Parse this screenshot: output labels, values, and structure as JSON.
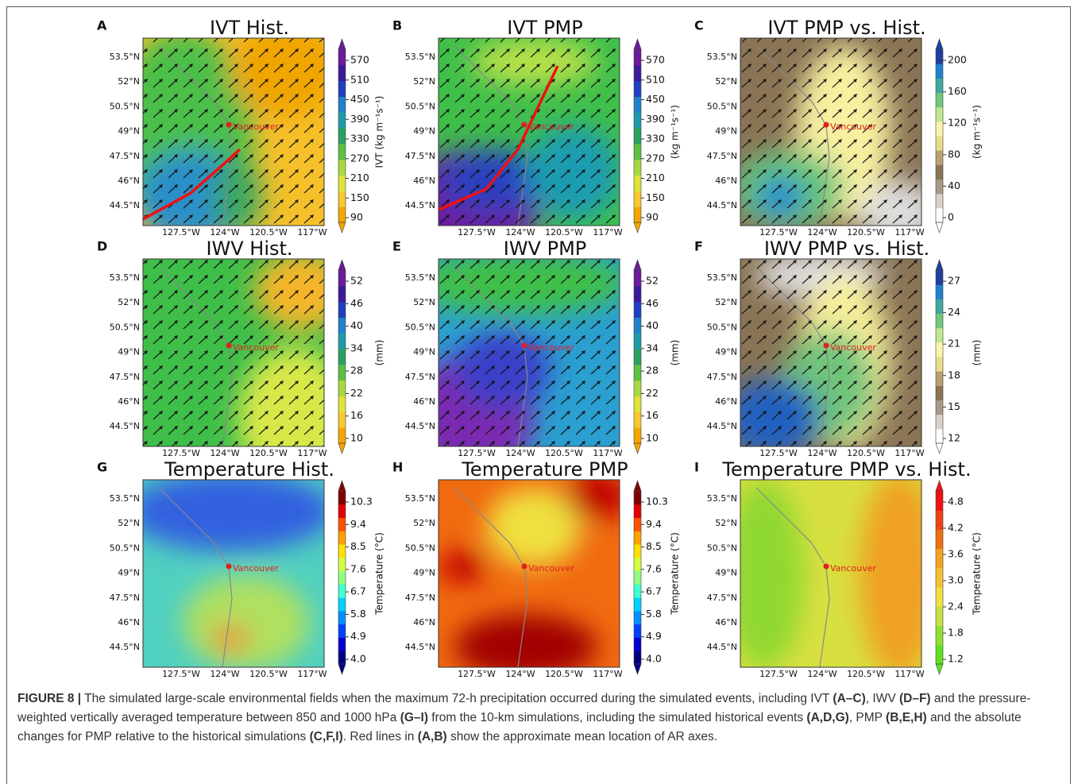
{
  "figure": {
    "panels": [
      {
        "letter": "A",
        "title": "IVT Hist.",
        "colorbar": {
          "ticks": [
            "90",
            "150",
            "210",
            "270",
            "330",
            "390",
            "450",
            "510",
            "570"
          ],
          "label": "IVT (kg m⁻¹s⁻¹)"
        }
      },
      {
        "letter": "B",
        "title": "IVT PMP",
        "colorbar": {
          "ticks": [
            "90",
            "150",
            "210",
            "270",
            "330",
            "390",
            "450",
            "510",
            "570"
          ],
          "label": "(kg m⁻¹s⁻¹)"
        }
      },
      {
        "letter": "C",
        "title": "IVT PMP vs. Hist.",
        "colorbar": {
          "ticks": [
            "0",
            "40",
            "80",
            "120",
            "160",
            "200"
          ],
          "label": "(kg m⁻¹s⁻¹)"
        }
      },
      {
        "letter": "D",
        "title": "IWV Hist.",
        "colorbar": {
          "ticks": [
            "10",
            "16",
            "22",
            "28",
            "34",
            "40",
            "46",
            "52"
          ],
          "label": "(mm)"
        }
      },
      {
        "letter": "E",
        "title": "IWV PMP",
        "colorbar": {
          "ticks": [
            "10",
            "16",
            "22",
            "28",
            "34",
            "40",
            "46",
            "52"
          ],
          "label": "(mm)"
        }
      },
      {
        "letter": "F",
        "title": "IWV PMP vs. Hist.",
        "colorbar": {
          "ticks": [
            "12",
            "15",
            "18",
            "21",
            "24",
            "27"
          ],
          "label": "(mm)"
        }
      },
      {
        "letter": "G",
        "title": "Temperature Hist.",
        "colorbar": {
          "ticks": [
            "4.0",
            "4.9",
            "5.8",
            "6.7",
            "7.6",
            "8.5",
            "9.4",
            "10.3"
          ],
          "label": "Temperature (°C)"
        }
      },
      {
        "letter": "H",
        "title": "Temperature PMP",
        "colorbar": {
          "ticks": [
            "4.0",
            "4.9",
            "5.8",
            "6.7",
            "7.6",
            "8.5",
            "9.4",
            "10.3"
          ],
          "label": "Temperature (°C)"
        }
      },
      {
        "letter": "I",
        "title": "Temperature PMP vs. Hist.",
        "colorbar": {
          "ticks": [
            "1.2",
            "1.8",
            "2.4",
            "3.0",
            "3.6",
            "4.2",
            "4.8"
          ],
          "label": "Temperature (°C)"
        }
      }
    ],
    "lat_labels": [
      "53.5°N",
      "52°N",
      "50.5°N",
      "49°N",
      "47.5°N",
      "46°N",
      "44.5°N"
    ],
    "lon_labels": [
      "127.5°W",
      "124°W",
      "120.5°W",
      "117°W"
    ],
    "city_label": "Vancouver"
  },
  "caption": [
    {
      "text": "FIGURE 8 |",
      "bold": true
    },
    {
      "text": " The simulated large-scale environmental fields when the maximum 72-h precipitation occurred during the simulated events, including IVT "
    },
    {
      "text": "(A–C)",
      "bold": true
    },
    {
      "text": ", IWV "
    },
    {
      "text": "(D–F)",
      "bold": true
    },
    {
      "text": " and the pressure-weighted vertically averaged temperature between 850 and 1000 hPa "
    },
    {
      "text": "(G–I)",
      "bold": true
    },
    {
      "text": " from the 10-km simulations, including the simulated historical events "
    },
    {
      "text": "(A,D,G)",
      "bold": true
    },
    {
      "text": ", PMP "
    },
    {
      "text": "(B,E,H)",
      "bold": true
    },
    {
      "text": " and the absolute changes for PMP relative to the historical simulations "
    },
    {
      "text": "(C,F,I)",
      "bold": true
    },
    {
      "text": ". Red lines in "
    },
    {
      "text": "(A,B)",
      "bold": true
    },
    {
      "text": " show the approximate mean location of AR axes."
    }
  ]
}
